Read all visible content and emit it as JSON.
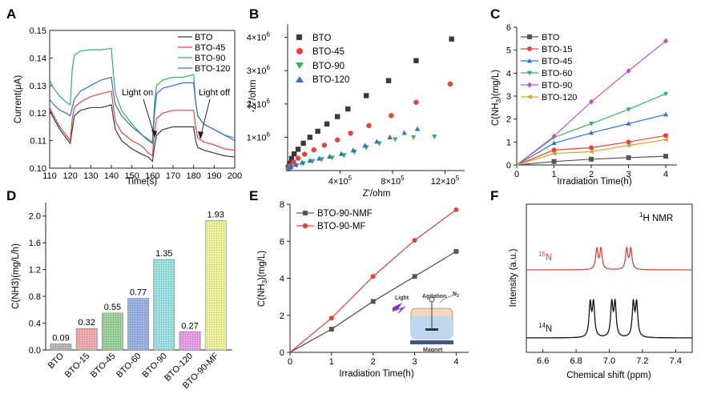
{
  "colors": {
    "black": "#3a3a3a",
    "red": "#e8403c",
    "green": "#2db36a",
    "blue": "#2f6fd6",
    "gray": "#555555",
    "magenta": "#c14fd6",
    "orange": "#e1a21a",
    "seagreen": "#2fb55a",
    "lightgray": "#9a9a9a"
  },
  "chart_data": [
    {
      "panel": "A",
      "type": "line",
      "xlabel": "Time(s)",
      "ylabel": "Current(μA)",
      "xlim": [
        110,
        200
      ],
      "ylim": [
        0.1,
        0.15
      ],
      "xticks": [
        "110",
        "120",
        "130",
        "140",
        "150",
        "160",
        "170",
        "180",
        "190",
        "200"
      ],
      "yticks": [
        "0.10",
        "0.11",
        "0.12",
        "0.13",
        "0.14",
        "0.15"
      ],
      "annotations": [
        "Light on",
        "Light off"
      ],
      "legend_position": "top-right",
      "series": [
        {
          "name": "BTO",
          "x": [
            110,
            112,
            115,
            118,
            120,
            121,
            122,
            125,
            130,
            135,
            140,
            141,
            142,
            145,
            150,
            155,
            158,
            160,
            161,
            162,
            165,
            170,
            175,
            180,
            181,
            182,
            185,
            190,
            195,
            200
          ],
          "y": [
            0.121,
            0.118,
            0.114,
            0.111,
            0.109,
            0.114,
            0.119,
            0.121,
            0.122,
            0.122,
            0.123,
            0.118,
            0.114,
            0.11,
            0.107,
            0.105,
            0.104,
            0.1025,
            0.108,
            0.112,
            0.114,
            0.115,
            0.115,
            0.115,
            0.11,
            0.1075,
            0.1065,
            0.1055,
            0.1045,
            0.104
          ]
        },
        {
          "name": "BTO-45",
          "x": [
            110,
            112,
            115,
            118,
            120,
            121,
            122,
            125,
            130,
            135,
            140,
            141,
            142,
            145,
            150,
            155,
            158,
            160,
            161,
            162,
            165,
            170,
            175,
            180,
            181,
            182,
            185,
            190,
            195,
            200
          ],
          "y": [
            0.122,
            0.119,
            0.115,
            0.112,
            0.11,
            0.118,
            0.122,
            0.124,
            0.126,
            0.127,
            0.128,
            0.122,
            0.117,
            0.113,
            0.11,
            0.108,
            0.1055,
            0.1045,
            0.113,
            0.118,
            0.12,
            0.121,
            0.121,
            0.121,
            0.115,
            0.111,
            0.1095,
            0.1085,
            0.107,
            0.1065
          ]
        },
        {
          "name": "BTO-90",
          "x": [
            110,
            112,
            115,
            118,
            120,
            121,
            122,
            125,
            130,
            135,
            140,
            141,
            142,
            145,
            150,
            155,
            158,
            160,
            161,
            162,
            165,
            170,
            175,
            180,
            181,
            182,
            185,
            190,
            195,
            200
          ],
          "y": [
            0.132,
            0.129,
            0.126,
            0.124,
            0.123,
            0.136,
            0.141,
            0.1425,
            0.143,
            0.143,
            0.1435,
            0.134,
            0.127,
            0.121,
            0.116,
            0.112,
            0.1105,
            0.1095,
            0.124,
            0.13,
            0.132,
            0.133,
            0.133,
            0.134,
            0.124,
            0.119,
            0.116,
            0.114,
            0.112,
            0.111
          ]
        },
        {
          "name": "BTO-120",
          "x": [
            110,
            112,
            115,
            118,
            120,
            121,
            122,
            125,
            130,
            135,
            140,
            141,
            142,
            145,
            150,
            155,
            158,
            160,
            161,
            162,
            165,
            170,
            175,
            180,
            181,
            182,
            185,
            190,
            195,
            200
          ],
          "y": [
            0.125,
            0.123,
            0.121,
            0.12,
            0.119,
            0.122,
            0.125,
            0.128,
            0.13,
            0.132,
            0.133,
            0.127,
            0.123,
            0.119,
            0.115,
            0.112,
            0.11,
            0.109,
            0.12,
            0.127,
            0.129,
            0.13,
            0.131,
            0.131,
            0.124,
            0.119,
            0.116,
            0.114,
            0.112,
            0.11
          ]
        }
      ]
    },
    {
      "panel": "B",
      "type": "scatter",
      "xlabel": "Z'/ohm",
      "ylabel": "-Z''/ohm",
      "xlim": [
        0,
        1350000
      ],
      "ylim": [
        0,
        4400000
      ],
      "xticks": [
        {
          "v": 400000,
          "t": "4×10",
          "e": "5"
        },
        {
          "v": 800000,
          "t": "8×10",
          "e": "5"
        },
        {
          "v": 1200000,
          "t": "12×10",
          "e": "5"
        }
      ],
      "yticks": [
        {
          "v": 1000000,
          "t": "1×10",
          "e": "6"
        },
        {
          "v": 2000000,
          "t": "2×10",
          "e": "6"
        },
        {
          "v": 3000000,
          "t": "3×10",
          "e": "6"
        },
        {
          "v": 4000000,
          "t": "4×10",
          "e": "6"
        }
      ],
      "legend_position": "top-left",
      "series": [
        {
          "name": "BTO",
          "marker": "square",
          "x": [
            5000,
            15000,
            30000,
            50000,
            80000,
            120000,
            170000,
            230000,
            300000,
            380000,
            460000,
            600000,
            770000,
            980000,
            1250000
          ],
          "y": [
            100000,
            220000,
            360000,
            500000,
            640000,
            820000,
            1000000,
            1180000,
            1400000,
            1620000,
            1850000,
            2250000,
            2700000,
            3300000,
            3950000
          ]
        },
        {
          "name": "BTO-45",
          "marker": "circle",
          "x": [
            5000,
            20000,
            45000,
            80000,
            130000,
            200000,
            280000,
            380000,
            480000,
            620000,
            790000,
            980000,
            1240000
          ],
          "y": [
            60000,
            150000,
            260000,
            370000,
            490000,
            620000,
            760000,
            920000,
            1120000,
            1350000,
            1650000,
            2050000,
            2600000
          ]
        },
        {
          "name": "BTO-90",
          "marker": "triangle-down",
          "x": [
            5000,
            30000,
            70000,
            120000,
            190000,
            260000,
            340000,
            430000,
            510000,
            600000,
            700000,
            820000,
            960000,
            1120000
          ],
          "y": [
            30000,
            90000,
            160000,
            220000,
            280000,
            340000,
            390000,
            460000,
            560000,
            700000,
            820000,
            940000,
            1000000,
            1020000
          ]
        },
        {
          "name": "BTO-120",
          "marker": "triangle-up",
          "x": [
            5000,
            25000,
            60000,
            110000,
            170000,
            240000,
            320000,
            410000,
            500000,
            590000,
            680000,
            780000,
            890000,
            990000
          ],
          "y": [
            40000,
            110000,
            180000,
            240000,
            300000,
            360000,
            420000,
            500000,
            610000,
            750000,
            870000,
            1000000,
            1130000,
            1250000
          ]
        }
      ]
    },
    {
      "panel": "C",
      "type": "line",
      "xlabel": "Irradiation Time(h)",
      "ylabel": "C(NH3)(mg/L)",
      "xlim": [
        0,
        4.3
      ],
      "ylim": [
        0,
        6
      ],
      "xticks": [
        "0",
        "1",
        "2",
        "3",
        "4"
      ],
      "yticks": [
        "0",
        "1",
        "2",
        "3",
        "4",
        "5",
        "6"
      ],
      "legend_position": "top-left",
      "x": [
        0,
        1,
        2,
        3,
        4
      ],
      "series": [
        {
          "name": "BTO",
          "marker": "square",
          "values": [
            0,
            0.15,
            0.25,
            0.32,
            0.38
          ]
        },
        {
          "name": "BTO-15",
          "marker": "circle",
          "values": [
            0,
            0.65,
            0.75,
            1.0,
            1.28
          ]
        },
        {
          "name": "BTO-45",
          "marker": "triangle-up",
          "values": [
            0,
            0.95,
            1.4,
            1.8,
            2.2
          ]
        },
        {
          "name": "BTO-60",
          "marker": "triangle-down",
          "values": [
            0,
            1.2,
            1.8,
            2.42,
            3.1
          ]
        },
        {
          "name": "BTO-90",
          "marker": "diamond",
          "values": [
            0,
            1.25,
            2.75,
            4.1,
            5.4
          ]
        },
        {
          "name": "BTO-120",
          "marker": "triangle-left",
          "values": [
            0,
            0.5,
            0.58,
            0.85,
            1.1
          ]
        }
      ]
    },
    {
      "panel": "D",
      "type": "bar",
      "ylabel": "C(NH3)(mg/L/h)",
      "ylim": [
        0,
        2.2
      ],
      "yticks": [
        "0.0",
        "0.4",
        "0.8",
        "1.2",
        "1.6",
        "2.0"
      ],
      "categories": [
        "BTO",
        "BTO-15",
        "BTO-45",
        "BTO-60",
        "BTO-90",
        "BTO-120",
        "BTO-90-MF"
      ],
      "values": [
        0.09,
        0.32,
        0.55,
        0.77,
        1.35,
        0.27,
        1.93
      ],
      "labels": [
        "0.09",
        "0.32",
        "0.55",
        "0.77",
        "1.35",
        "0.27",
        "1.93"
      ],
      "bar_colors": [
        "#7a7a7a",
        "#f06060",
        "#40b040",
        "#3a6fd8",
        "#40d0d0",
        "#e040e0",
        "#f0f040"
      ]
    },
    {
      "panel": "E",
      "type": "line",
      "xlabel": "Irradiation Time(h)",
      "ylabel": "C(NH3)(mg/L)",
      "xlim": [
        0,
        4.3
      ],
      "ylim": [
        0,
        8
      ],
      "xticks": [
        "0",
        "1",
        "2",
        "3",
        "4"
      ],
      "yticks": [
        "0",
        "2",
        "4",
        "6",
        "8"
      ],
      "legend_position": "top-left",
      "inset_labels": [
        "Agitation",
        "Light",
        "N",
        "2",
        "Magnet"
      ],
      "x": [
        0,
        1,
        2,
        3,
        4
      ],
      "series": [
        {
          "name": "BTO-90-NMF",
          "marker": "square",
          "values": [
            0,
            1.25,
            2.75,
            4.1,
            5.45
          ]
        },
        {
          "name": "BTO-90-MF",
          "marker": "circle",
          "values": [
            0,
            1.85,
            4.1,
            6.05,
            7.7
          ]
        }
      ]
    },
    {
      "panel": "F",
      "type": "line",
      "xlabel": "Chemical shift (ppm)",
      "ylabel": "Intensity (a.u.)",
      "title": "1H NMR",
      "xlim": [
        6.5,
        7.5
      ],
      "xticks": [
        "6.6",
        "6.8",
        "7.0",
        "7.2",
        "7.4"
      ],
      "series": [
        {
          "name": "15N",
          "peaks": [
            6.925,
            6.95,
            7.105,
            7.13
          ]
        },
        {
          "name": "14N",
          "peaks": [
            6.885,
            6.905,
            7.015,
            7.035,
            7.145,
            7.165
          ]
        }
      ]
    }
  ],
  "panels": {
    "A": {
      "letter": "A",
      "xlabel": "Time(s)",
      "ylabel": "Current(μA)",
      "ann_on": "Light on",
      "ann_off": "Light off",
      "legend": [
        "BTO",
        "BTO-45",
        "BTO-90",
        "BTO-120"
      ]
    },
    "B": {
      "letter": "B",
      "xlabel": "Z'/ohm",
      "ylabel": "-Z''/ohm",
      "legend": [
        "BTO",
        "BTO-45",
        "BTO-90",
        "BTO-120"
      ]
    },
    "C": {
      "letter": "C",
      "xlabel": "Irradiation Time(h)",
      "ylabel_main": "C(NH",
      "ylabel_sub": "3",
      "ylabel_end": ")(mg/L)",
      "legend": [
        "BTO",
        "BTO-15",
        "BTO-45",
        "BTO-60",
        "BTO-90",
        "BTO-120"
      ]
    },
    "D": {
      "letter": "D",
      "ylabel": "C(NH3)(mg/L/h)"
    },
    "E": {
      "letter": "E",
      "xlabel": "Irradiation Time(h)",
      "ylabel_main": "C(NH",
      "ylabel_sub": "3",
      "ylabel_end": ")(mg/L)",
      "legend": [
        "BTO-90-NMF",
        "BTO-90-MF"
      ]
    },
    "F": {
      "letter": "F",
      "xlabel": "Chemical shift (ppm)",
      "ylabel": "Intensity (a.u.)",
      "title_sup": "1",
      "title_main": "H NMR",
      "label15_sup": "15",
      "label15_main": "N",
      "label14_sup": "14",
      "label14_main": "N"
    }
  }
}
